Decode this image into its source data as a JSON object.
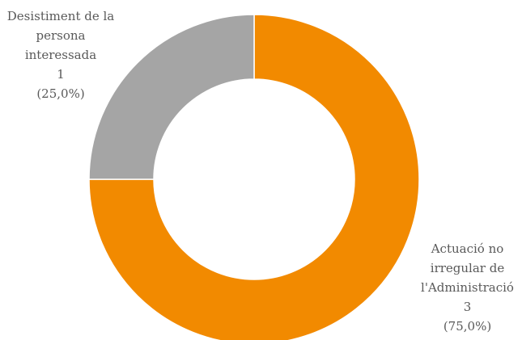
{
  "chart_data": {
    "type": "donut",
    "categories": [
      "Actuació no irregular de l'Administració",
      "Desistiment de la persona interessada"
    ],
    "values": [
      3,
      1
    ],
    "percent_labels": [
      "(75,0%)",
      "(25,0%)"
    ],
    "colors": [
      "#f28a00",
      "#a5a5a5"
    ]
  }
}
